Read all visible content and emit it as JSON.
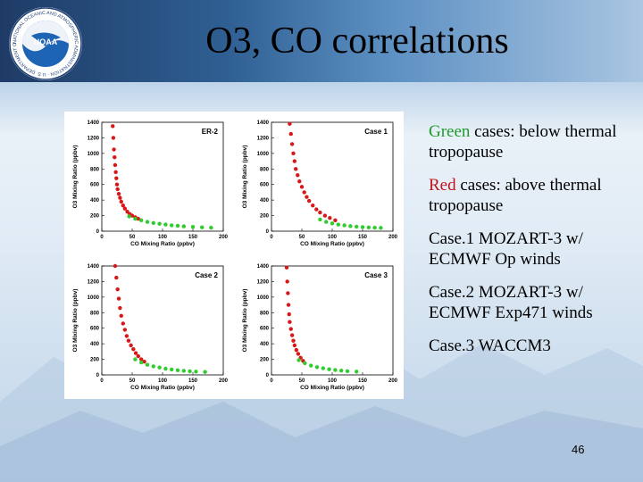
{
  "slide": {
    "title": "O3, CO correlations",
    "page_number": "46",
    "logo": {
      "text": "NOAA",
      "ring_text": "NATIONAL OCEANIC AND ATMOSPHERIC ADMINISTRATION · U.S. DEPARTMENT OF COMMERCE"
    },
    "bullets": [
      {
        "colored": "Green",
        "rest": " cases: below thermal tropopause",
        "color": "#1f9a2a"
      },
      {
        "colored": "Red",
        "rest": " cases: above thermal tropopause",
        "color": "#c0141b"
      },
      {
        "colored": "",
        "rest": "Case.1 MOZART-3 w/ ECMWF Op winds",
        "color": "#000000"
      },
      {
        "colored": "",
        "rest": "Case.2 MOZART-3 w/ ECMWF Exp471 winds",
        "color": "#000000"
      },
      {
        "colored": "",
        "rest": "Case.3 WACCM3",
        "color": "#000000"
      }
    ]
  },
  "chart_data": [
    {
      "type": "scatter",
      "panel_label": "ER-2",
      "xlabel": "CO Mixing Ratio (ppbv)",
      "ylabel": "O3 Mixing Ratio (ppbv)",
      "xlim": [
        0,
        200
      ],
      "ylim": [
        0,
        1400
      ],
      "xticks": [
        0,
        50,
        100,
        150,
        200
      ],
      "yticks": [
        0,
        200,
        400,
        600,
        800,
        1000,
        1200,
        1400
      ],
      "series": [
        {
          "name": "Red",
          "color": "#d81818",
          "x": [
            18,
            19,
            20,
            21,
            22,
            23,
            24,
            25,
            26,
            28,
            30,
            32,
            35,
            38,
            42,
            46,
            50,
            55,
            60
          ],
          "y": [
            1350,
            1200,
            1050,
            950,
            850,
            760,
            680,
            600,
            540,
            480,
            430,
            380,
            330,
            290,
            250,
            220,
            200,
            180,
            160
          ]
        },
        {
          "name": "Green",
          "color": "#2ecc2e",
          "x": [
            45,
            55,
            65,
            75,
            85,
            95,
            105,
            115,
            125,
            135,
            150,
            165,
            180
          ],
          "y": [
            190,
            160,
            140,
            120,
            105,
            95,
            85,
            75,
            70,
            62,
            55,
            50,
            45
          ]
        }
      ]
    },
    {
      "type": "scatter",
      "panel_label": "Case 1",
      "xlabel": "CO Mixing Ratio (ppbv)",
      "ylabel": "O3 Mixing Ratio (ppbv)",
      "xlim": [
        0,
        200
      ],
      "ylim": [
        0,
        1400
      ],
      "xticks": [
        0,
        50,
        100,
        150,
        200
      ],
      "yticks": [
        0,
        200,
        400,
        600,
        800,
        1000,
        1200,
        1400
      ],
      "series": [
        {
          "name": "Red",
          "color": "#d81818",
          "x": [
            30,
            32,
            34,
            36,
            38,
            40,
            43,
            46,
            50,
            54,
            58,
            62,
            68,
            74,
            80,
            88,
            96,
            105
          ],
          "y": [
            1380,
            1250,
            1120,
            1000,
            900,
            800,
            720,
            640,
            570,
            500,
            440,
            390,
            330,
            280,
            240,
            200,
            170,
            140
          ]
        },
        {
          "name": "Green",
          "color": "#2ecc2e",
          "x": [
            80,
            90,
            100,
            110,
            120,
            130,
            140,
            150,
            160,
            170,
            180
          ],
          "y": [
            150,
            120,
            100,
            85,
            75,
            65,
            58,
            52,
            48,
            45,
            42
          ]
        }
      ]
    },
    {
      "type": "scatter",
      "panel_label": "Case 2",
      "xlabel": "CO Mixing Ratio (ppbv)",
      "ylabel": "O3 Mixing Ratio (ppbv)",
      "xlim": [
        0,
        200
      ],
      "ylim": [
        0,
        1400
      ],
      "xticks": [
        0,
        50,
        100,
        150,
        200
      ],
      "yticks": [
        0,
        200,
        400,
        600,
        800,
        1000,
        1200,
        1400
      ],
      "series": [
        {
          "name": "Red",
          "color": "#d81818",
          "x": [
            22,
            24,
            26,
            28,
            30,
            32,
            35,
            38,
            41,
            44,
            48,
            52,
            56,
            60,
            65,
            70
          ],
          "y": [
            1400,
            1250,
            1100,
            980,
            860,
            760,
            660,
            580,
            500,
            440,
            380,
            330,
            280,
            240,
            200,
            170
          ]
        },
        {
          "name": "Green",
          "color": "#2ecc2e",
          "x": [
            55,
            65,
            75,
            85,
            95,
            105,
            115,
            125,
            135,
            145,
            155,
            170
          ],
          "y": [
            200,
            160,
            130,
            110,
            95,
            80,
            70,
            60,
            52,
            46,
            42,
            38
          ]
        }
      ]
    },
    {
      "type": "scatter",
      "panel_label": "Case 3",
      "xlabel": "CO Mixing Ratio (ppbv)",
      "ylabel": "O3 Mixing Ratio (ppbv)",
      "xlim": [
        0,
        200
      ],
      "ylim": [
        0,
        1400
      ],
      "xticks": [
        0,
        50,
        100,
        150,
        200
      ],
      "yticks": [
        0,
        200,
        400,
        600,
        800,
        1000,
        1200,
        1400
      ],
      "series": [
        {
          "name": "Red",
          "color": "#d81818",
          "x": [
            25,
            26,
            27,
            28,
            29,
            30,
            32,
            34,
            36,
            38,
            41,
            44,
            48,
            52
          ],
          "y": [
            1380,
            1200,
            1050,
            900,
            780,
            680,
            590,
            510,
            440,
            380,
            320,
            270,
            220,
            180
          ]
        },
        {
          "name": "Green",
          "color": "#2ecc2e",
          "x": [
            45,
            55,
            65,
            75,
            85,
            95,
            105,
            115,
            125,
            140
          ],
          "y": [
            190,
            150,
            120,
            100,
            85,
            72,
            62,
            55,
            48,
            42
          ]
        }
      ]
    }
  ]
}
